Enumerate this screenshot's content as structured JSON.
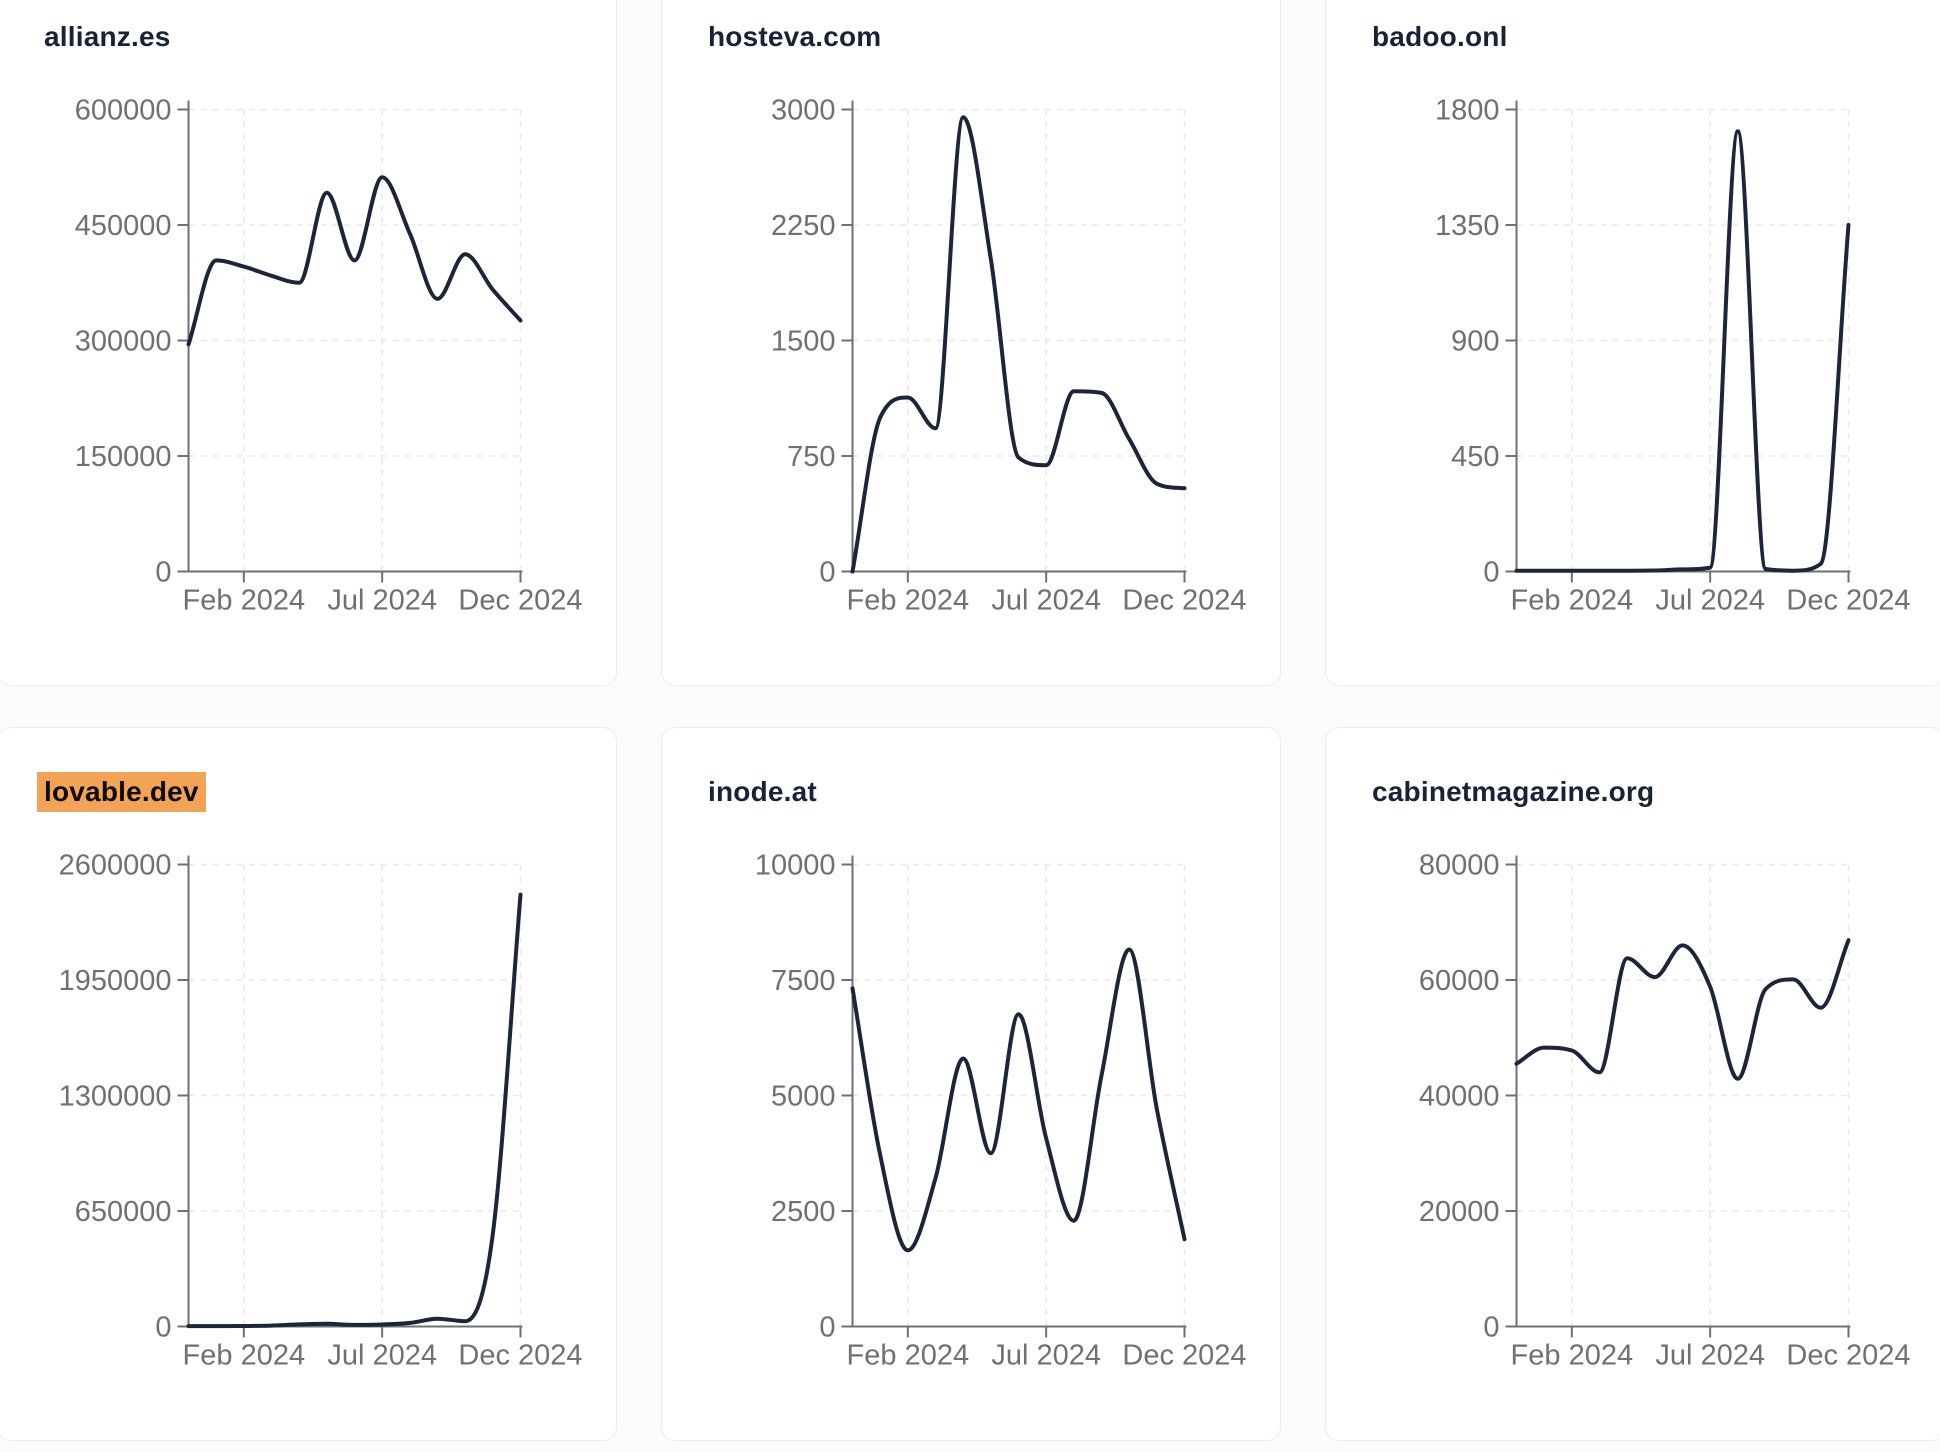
{
  "page": {
    "background": "#fcfcfd",
    "layout": "3x2 grid of domain traffic line-chart cards"
  },
  "colors": {
    "card_background": "#ffffff",
    "card_border": "#e8ecf3",
    "title_text": "#192338",
    "series_line": "#1c2539",
    "axis_line": "#6e7076",
    "tick_label": "#6e7076",
    "gridline": "#e8e8ed",
    "highlight_background": "#f2a355",
    "highlight_text": "#0d0d0d"
  },
  "axis": {
    "months": [
      "Dec 2023",
      "Jan 2024",
      "Feb 2024",
      "Mar 2024",
      "Apr 2024",
      "May 2024",
      "Jun 2024",
      "Jul 2024",
      "Aug 2024",
      "Sep 2024",
      "Oct 2024",
      "Nov 2024",
      "Dec 2024"
    ],
    "x_tick_labels": [
      "Feb 2024",
      "Jul 2024",
      "Dec 2024"
    ],
    "x_tick_month_indices": [
      2,
      7,
      12
    ],
    "grid": "dashed",
    "legend": "none"
  },
  "chart_data": [
    {
      "type": "line",
      "title": "allianz.es",
      "highlighted": false,
      "ylim": [
        0,
        600000
      ],
      "y_ticks": [
        0,
        150000,
        300000,
        450000,
        600000
      ],
      "values": [
        295000,
        404000,
        396000,
        384000,
        375000,
        492000,
        404000,
        512000,
        439000,
        354000,
        412000,
        366000,
        326000
      ]
    },
    {
      "type": "line",
      "title": "hosteva.com",
      "highlighted": false,
      "ylim": [
        0,
        3000
      ],
      "y_ticks": [
        0,
        750,
        1500,
        2250,
        3000
      ],
      "values": [
        0,
        1000,
        1130,
        930,
        2950,
        2030,
        740,
        690,
        1170,
        1160,
        860,
        570,
        540
      ]
    },
    {
      "type": "line",
      "title": "badoo.onl",
      "highlighted": false,
      "ylim": [
        0,
        1800
      ],
      "y_ticks": [
        0,
        450,
        900,
        1350,
        1800
      ],
      "values": [
        3,
        3,
        3,
        3,
        3,
        4,
        8,
        15,
        1715,
        10,
        3,
        30,
        1350
      ]
    },
    {
      "type": "line",
      "title": "lovable.dev",
      "highlighted": true,
      "ylim": [
        0,
        2600000
      ],
      "y_ticks": [
        0,
        650000,
        1300000,
        1950000,
        2600000
      ],
      "values": [
        2000,
        2500,
        3000,
        5000,
        12000,
        15000,
        9000,
        11000,
        20000,
        44000,
        30000,
        520000,
        2430000
      ]
    },
    {
      "type": "line",
      "title": "inode.at",
      "highlighted": false,
      "ylim": [
        0,
        10000
      ],
      "y_ticks": [
        0,
        2500,
        5000,
        7500,
        10000
      ],
      "values": [
        7320,
        3710,
        1650,
        3210,
        5800,
        3750,
        6760,
        4070,
        2290,
        5430,
        8160,
        4710,
        1890
      ]
    },
    {
      "type": "line",
      "title": "cabinetmagazine.org",
      "highlighted": false,
      "ylim": [
        0,
        80000
      ],
      "y_ticks": [
        0,
        20000,
        40000,
        60000,
        80000
      ],
      "values": [
        45500,
        48300,
        47800,
        44000,
        63750,
        60500,
        66000,
        58800,
        42900,
        58400,
        60100,
        55200,
        66900
      ]
    }
  ]
}
